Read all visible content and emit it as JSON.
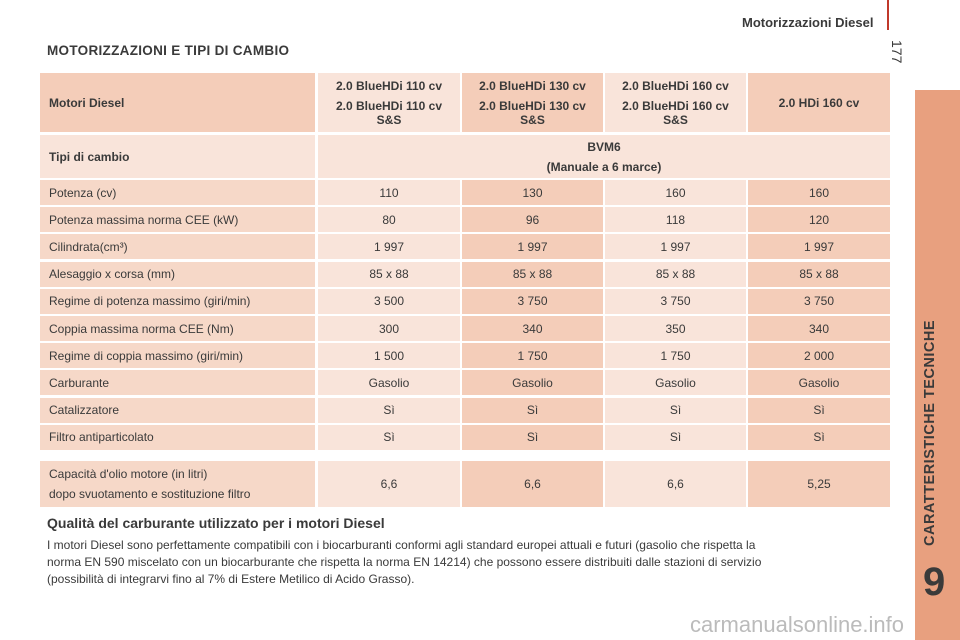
{
  "header": {
    "section": "Motorizzazioni Diesel",
    "page_number": "177"
  },
  "title": "MOTORIZZAZIONI E TIPI DI CAMBIO",
  "table": {
    "header": {
      "label": "Motori Diesel",
      "columns": [
        [
          "2.0 BlueHDi 110 cv",
          "2.0 BlueHDi 110 cv S&S"
        ],
        [
          "2.0 BlueHDi 130 cv",
          "2.0 BlueHDi 130 cv S&S"
        ],
        [
          "2.0 BlueHDi 160 cv",
          "2.0 BlueHDi 160 cv S&S"
        ],
        [
          "2.0 HDi 160 cv"
        ]
      ]
    },
    "gearbox": {
      "label": "Tipi di cambio",
      "lines": [
        "BVM6",
        "(Manuale a 6 marce)"
      ]
    },
    "rows": [
      [
        "Potenza (cv)",
        "110",
        "130",
        "160",
        "160"
      ],
      [
        "Potenza massima norma CEE (kW)",
        "80",
        "96",
        "118",
        "120"
      ],
      [
        "Cilindrata(cm³)",
        "1 997",
        "1 997",
        "1 997",
        "1 997"
      ],
      [
        "Alesaggio x corsa (mm)",
        "85 x 88",
        "85 x 88",
        "85 x 88",
        "85 x 88"
      ],
      [
        "Regime di potenza massimo (giri/min)",
        "3 500",
        "3 750",
        "3 750",
        "3 750"
      ],
      [
        "Coppia massima norma CEE (Nm)",
        "300",
        "340",
        "350",
        "340"
      ],
      [
        "Regime di coppia massimo (giri/min)",
        "1 500",
        "1 750",
        "1 750",
        "2 000"
      ],
      [
        "Carburante",
        "Gasolio",
        "Gasolio",
        "Gasolio",
        "Gasolio"
      ],
      [
        "Catalizzatore",
        "Sì",
        "Sì",
        "Sì",
        "Sì"
      ],
      [
        "Filtro antiparticolato",
        "Sì",
        "Sì",
        "Sì",
        "Sì"
      ]
    ],
    "oil": {
      "label_lines": [
        "Capacità d'olio motore (in litri)",
        "dopo svuotamento e sostituzione filtro"
      ],
      "values": [
        "6,6",
        "6,6",
        "6,6",
        "5,25"
      ]
    }
  },
  "section": {
    "title": "Qualità del carburante utilizzato per i motori Diesel",
    "lines": [
      "I motori Diesel sono perfettamente compatibili con i biocarburanti conformi agli standard europei attuali e futuri (gasolio che rispetta la",
      "norma EN 590 miscelato con un biocarburante che rispetta la norma EN 14214) che possono essere distribuiti dalle stazioni di servizio",
      "(possibilità di integrarvi fino al 7% di Estere Metilico di Acido Grasso)."
    ]
  },
  "sidebar": {
    "tab": "CARATTERISTICHE TECNICHE",
    "chapter": "9"
  },
  "watermark": "carmanualsonline.info"
}
